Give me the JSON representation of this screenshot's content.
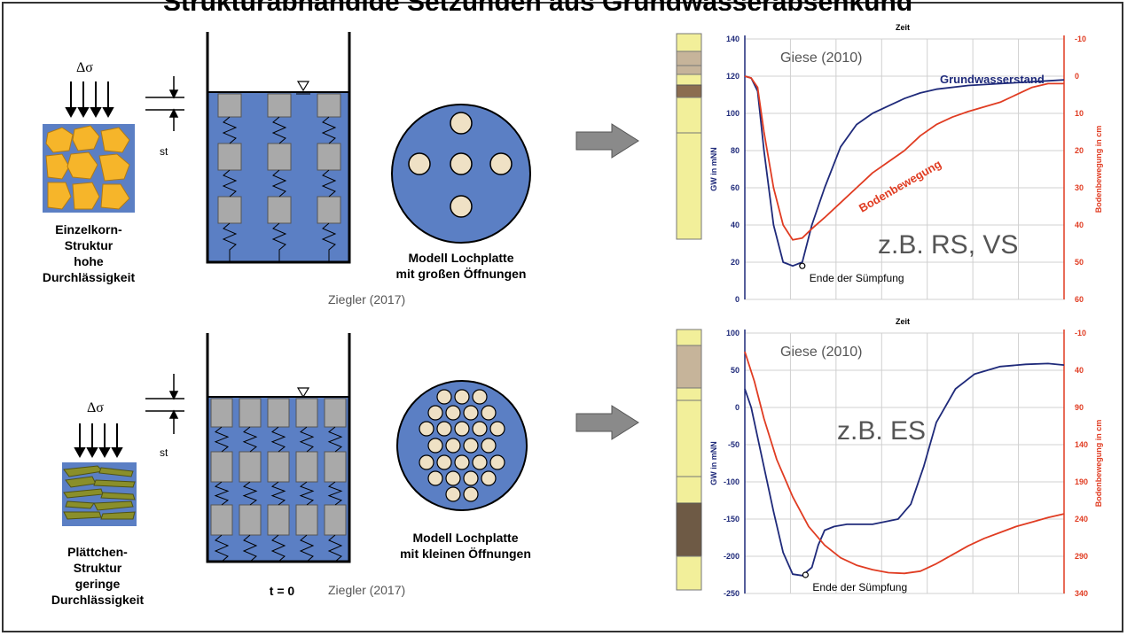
{
  "title": "Strukturabhängige Setzungen aus Grundwasserabsenkung",
  "rows": [
    {
      "delta_sigma": "Δσ",
      "settlement_label": "st",
      "structure_label": "Einzelkorn-\nStruktur\nhohe\nDurchlässigkeit",
      "plate_label": "Modell Lochplatte\nmit großen Öffnungen",
      "credit": "Ziegler (2017)",
      "time_label": ""
    },
    {
      "delta_sigma": "Δσ",
      "settlement_label": "st",
      "structure_label": "Plättchen-\nStruktur\ngeringe\nDurchlässigkeit",
      "plate_label": "Modell Lochplatte\nmit kleinen Öffnungen",
      "credit": "Ziegler (2017)",
      "time_label": "t = 0"
    }
  ],
  "chart_data": [
    {
      "type": "line",
      "x_title": "Zeit",
      "source": "Giese (2010)",
      "annotation": "z.B. RS, VS",
      "marker_label": "Ende der Sümpfung",
      "ylabel": "GW in mNN",
      "y2label": "Bodenbewegung in cm",
      "ylim": [
        0,
        140
      ],
      "y_ticks": [
        "140",
        "120",
        "100",
        "80",
        "60",
        "40",
        "20",
        "0"
      ],
      "y2lim": [
        -10,
        60
      ],
      "y2_ticks": [
        "-10",
        "0",
        "10",
        "20",
        "30",
        "40",
        "50",
        "60"
      ],
      "xlim": [
        0,
        100
      ],
      "grid": true,
      "series": [
        {
          "name": "Grundwasserstand",
          "axis": "left",
          "color": "#1f2a7a",
          "x": [
            0,
            2,
            4,
            6,
            9,
            12,
            15,
            18,
            21,
            25,
            30,
            35,
            40,
            45,
            50,
            55,
            60,
            70,
            80,
            90,
            100
          ],
          "y": [
            120,
            119,
            112,
            80,
            40,
            20,
            18,
            20,
            40,
            60,
            82,
            94,
            100,
            104,
            108,
            111,
            113,
            115,
            116,
            117,
            118
          ]
        },
        {
          "name": "Bodenbewegung",
          "axis": "right",
          "color": "#e03c22",
          "x": [
            0,
            2,
            4,
            6,
            9,
            12,
            15,
            18,
            21,
            25,
            30,
            35,
            40,
            45,
            50,
            55,
            60,
            65,
            70,
            80,
            90,
            95,
            100
          ],
          "y": [
            0,
            0.5,
            3,
            15,
            30,
            40,
            44,
            43.5,
            41,
            38,
            34,
            30,
            26,
            23,
            20,
            16,
            13,
            11,
            9.5,
            7,
            3,
            2,
            2
          ]
        }
      ],
      "marker": {
        "x": 18,
        "y": 18
      }
    },
    {
      "type": "line",
      "x_title": "Zeit",
      "source": "Giese (2010)",
      "annotation": "z.B. ES",
      "marker_label": "Ende der Sümpfung",
      "ylabel": "GW in mNN",
      "y2label": "Bodenbewegung in cm",
      "ylim": [
        -250,
        100
      ],
      "y_ticks": [
        "100",
        "50",
        "0",
        "-50",
        "-100",
        "-150",
        "-200",
        "-250"
      ],
      "y2lim": [
        -10,
        340
      ],
      "y2_ticks": [
        "-10",
        "40",
        "90",
        "140",
        "190",
        "240",
        "290",
        "340"
      ],
      "xlim": [
        0,
        100
      ],
      "grid": true,
      "series": [
        {
          "name": "",
          "axis": "left",
          "color": "#1f2a7a",
          "x": [
            0,
            2,
            4,
            6,
            9,
            12,
            15,
            18,
            21,
            23,
            25,
            28,
            32,
            40,
            48,
            52,
            56,
            60,
            66,
            72,
            80,
            88,
            95,
            100
          ],
          "y": [
            25,
            0,
            -40,
            -80,
            -140,
            -195,
            -224,
            -226,
            -215,
            -185,
            -165,
            -160,
            -157,
            -157,
            -150,
            -130,
            -80,
            -20,
            25,
            45,
            55,
            58,
            59,
            57
          ]
        },
        {
          "name": "",
          "axis": "right",
          "color": "#e03c22",
          "x": [
            0,
            3,
            6,
            10,
            15,
            20,
            25,
            30,
            35,
            40,
            45,
            50,
            55,
            60,
            65,
            70,
            75,
            80,
            85,
            90,
            95,
            100
          ],
          "y": [
            15,
            55,
            105,
            160,
            210,
            250,
            275,
            292,
            302,
            308,
            312,
            313,
            310,
            300,
            288,
            276,
            266,
            258,
            250,
            244,
            238,
            233
          ]
        }
      ],
      "marker": {
        "x": 19,
        "y": -225
      }
    }
  ],
  "colors": {
    "water": "#5b7fc4",
    "grain_orange": "#f6b52a",
    "grain_olive": "#8a8f2a",
    "plate": "#5b7fc4",
    "hole": "#efe1c5",
    "arrow": "#8a8a8a",
    "soil_yellow": "#f2ef9a",
    "soil_brown": "#c6b49a"
  }
}
